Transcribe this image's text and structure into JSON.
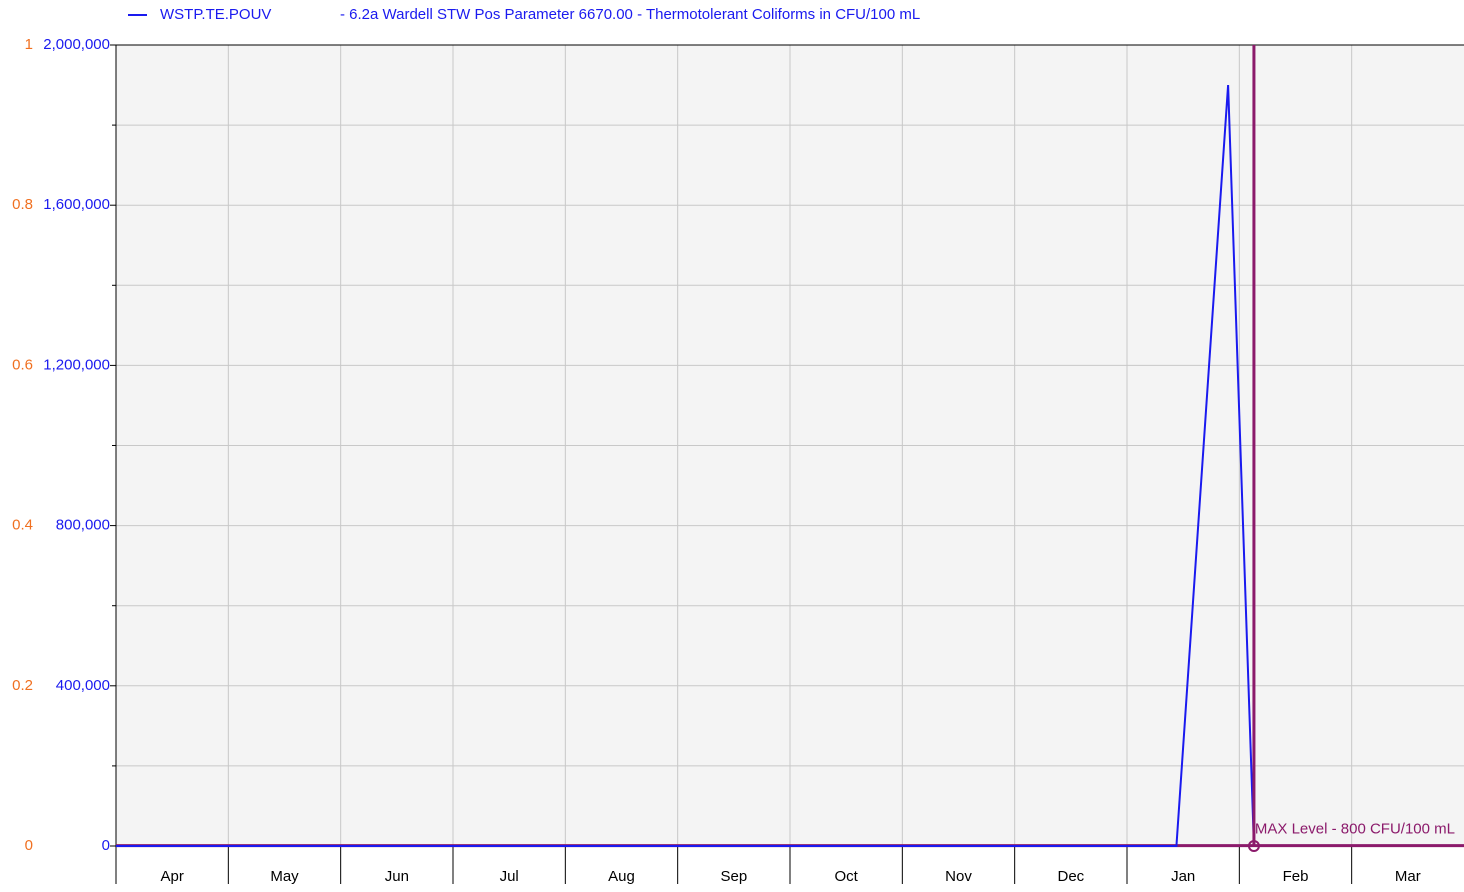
{
  "chart_data": {
    "type": "line",
    "series": [
      {
        "name": "WSTP.TE.POUV",
        "description": "- 6.2a Wardell STW Pos Parameter 6670.00 - Thermotolerant Coliforms in CFU/100 mL",
        "color": "#1a1aef",
        "x": [
          0,
          9.44,
          9.9,
          10.13
        ],
        "values": [
          0,
          0,
          1900000,
          0
        ]
      }
    ],
    "categories": [
      "Apr",
      "May",
      "Jun",
      "Jul",
      "Aug",
      "Sep",
      "Oct",
      "Nov",
      "Dec",
      "Jan",
      "Feb",
      "Mar"
    ],
    "xlim": [
      0,
      12
    ],
    "ylim": [
      0,
      2000000
    ],
    "yticks": [
      0,
      {
        "value": 400000,
        "label": "400,000"
      },
      {
        "value": 800000,
        "label": "800,000"
      },
      {
        "value": 1200000,
        "label": "1,200,000"
      },
      {
        "value": 1600000,
        "label": "1,600,000"
      },
      {
        "value": 2000000,
        "label": "2,000,000"
      }
    ],
    "y_color": "#1a1aef",
    "y2lim": [
      0,
      1
    ],
    "y2ticks": [
      0,
      0.2,
      0.4,
      0.6,
      0.8,
      1
    ],
    "y2_color": "#f07020",
    "grid": true,
    "minor_grid": true,
    "limit": {
      "label": "MAX Level - 800 CFU/100 mL",
      "value": 800,
      "color": "#8b1a6b"
    },
    "cursor_x": 10.13
  }
}
